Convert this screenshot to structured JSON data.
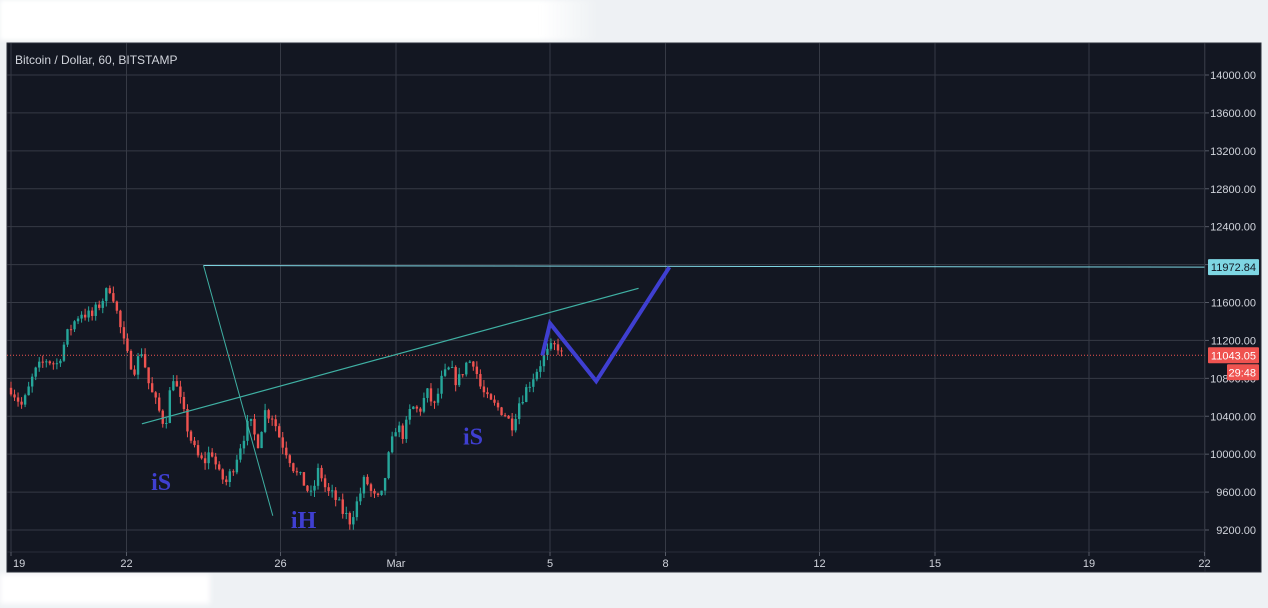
{
  "chart_data": {
    "type": "candlestick",
    "title": "Bitcoin / Dollar, 60, BITSTAMP",
    "y_ticks": [
      14000,
      13600,
      13200,
      12800,
      12400,
      12000,
      11600,
      11200,
      10800,
      10400,
      10000,
      9600,
      9200
    ],
    "y_tick_labels": [
      "14000.00",
      "13600.00",
      "13200.00",
      "12800.00",
      "12400.00",
      "",
      "11600.00",
      "11200.00",
      "10800.00",
      "10400.00",
      "10000.00",
      "9600.00",
      "9200.00"
    ],
    "x_ticks": [
      {
        "day": 19,
        "label": "19"
      },
      {
        "day": 22,
        "label": "22"
      },
      {
        "day": 26,
        "label": "26"
      },
      {
        "day": 29,
        "label": "Mar"
      },
      {
        "day": 33,
        "label": "5"
      },
      {
        "day": 36,
        "label": "8"
      },
      {
        "day": 40,
        "label": "12"
      },
      {
        "day": 43,
        "label": "15"
      },
      {
        "day": 47,
        "label": "19"
      },
      {
        "day": 50,
        "label": "22"
      }
    ],
    "ylim": [
      9000,
      14300
    ],
    "xlim": [
      19,
      53
    ],
    "grid": true,
    "current_price": 11043.05,
    "current_price_label": "11043.05",
    "countdown_label": "29:48",
    "target_price": 11972.84,
    "target_price_label": "11972.84",
    "close_path": [
      [
        19.0,
        10700
      ],
      [
        19.3,
        10500
      ],
      [
        19.6,
        10850
      ],
      [
        19.9,
        11000
      ],
      [
        20.2,
        10950
      ],
      [
        20.5,
        11300
      ],
      [
        20.8,
        11500
      ],
      [
        21.1,
        11450
      ],
      [
        21.4,
        11650
      ],
      [
        21.6,
        11780
      ],
      [
        21.8,
        11400
      ],
      [
        22.0,
        11050
      ],
      [
        22.2,
        10900
      ],
      [
        22.4,
        11100
      ],
      [
        22.6,
        10700
      ],
      [
        22.8,
        10500
      ],
      [
        23.0,
        10300
      ],
      [
        23.2,
        10850
      ],
      [
        23.4,
        10550
      ],
      [
        23.6,
        10250
      ],
      [
        23.8,
        10000
      ],
      [
        24.0,
        9900
      ],
      [
        24.2,
        10050
      ],
      [
        24.4,
        9780
      ],
      [
        24.6,
        9700
      ],
      [
        24.8,
        9900
      ],
      [
        25.0,
        10150
      ],
      [
        25.2,
        10350
      ],
      [
        25.4,
        10100
      ],
      [
        25.6,
        10450
      ],
      [
        25.8,
        10400
      ],
      [
        26.0,
        10150
      ],
      [
        26.2,
        10000
      ],
      [
        26.4,
        9800
      ],
      [
        26.6,
        9700
      ],
      [
        26.8,
        9550
      ],
      [
        27.0,
        9850
      ],
      [
        27.2,
        9600
      ],
      [
        27.4,
        9550
      ],
      [
        27.6,
        9400
      ],
      [
        27.8,
        9300
      ],
      [
        28.0,
        9500
      ],
      [
        28.2,
        9750
      ],
      [
        28.4,
        9550
      ],
      [
        28.6,
        9500
      ],
      [
        28.8,
        9950
      ],
      [
        29.0,
        10300
      ],
      [
        29.2,
        10200
      ],
      [
        29.4,
        10500
      ],
      [
        29.6,
        10450
      ],
      [
        29.8,
        10650
      ],
      [
        30.0,
        10500
      ],
      [
        30.2,
        10800
      ],
      [
        30.4,
        10900
      ],
      [
        30.6,
        10750
      ],
      [
        30.8,
        10950
      ],
      [
        31.0,
        11000
      ],
      [
        31.2,
        10700
      ],
      [
        31.4,
        10550
      ],
      [
        31.6,
        10500
      ],
      [
        31.8,
        10450
      ],
      [
        32.0,
        10300
      ],
      [
        32.2,
        10550
      ],
      [
        32.4,
        10700
      ],
      [
        32.6,
        10850
      ],
      [
        32.8,
        11000
      ],
      [
        33.0,
        11100
      ],
      [
        33.2,
        11150
      ],
      [
        33.3,
        11043
      ]
    ],
    "neckline": [
      [
        22.4,
        10320
      ],
      [
        35.3,
        11750
      ]
    ],
    "triangle": [
      [
        24.0,
        11990
      ],
      [
        25.8,
        9350
      ],
      [
        53.0,
        11972.84
      ]
    ],
    "projection": [
      [
        32.8,
        11043
      ],
      [
        33.0,
        11380
      ],
      [
        34.2,
        10770
      ],
      [
        36.1,
        11972.84
      ]
    ],
    "annotations": [
      {
        "text": "iS",
        "day": 22.9,
        "price": 9620
      },
      {
        "text": "iH",
        "day": 26.6,
        "price": 9220
      },
      {
        "text": "iS",
        "day": 31.0,
        "price": 10100
      }
    ],
    "colors": {
      "background": "#131722",
      "grid": "#363a45",
      "up": "#26a69a",
      "down": "#ef5350",
      "current_price": "#ef5350",
      "target_line": "#7ed6e3",
      "neckline": "#3fb0a3",
      "projection": "#3f3fd1",
      "annotation": "#3f3fd1",
      "axis_text": "#d1d4dc"
    }
  }
}
